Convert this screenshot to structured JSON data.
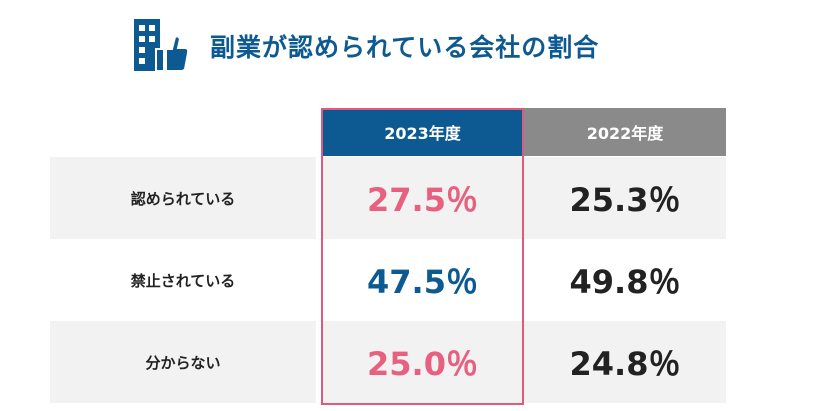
{
  "header": {
    "title": "副業が認められている会社の割合",
    "icon": "building-thumbs-up-icon"
  },
  "colors": {
    "title": "#0d5a92",
    "header_2023": "#0d5a92",
    "header_2022": "#8a8a8a",
    "highlight": "#e05a80",
    "pink_value": "#e8607f",
    "blue_value": "#0d5a92"
  },
  "chart_data": {
    "type": "table",
    "columns": [
      "2023年度",
      "2022年度"
    ],
    "rows": [
      {
        "label": "認められている",
        "values": [
          "27.5％",
          "25.3％"
        ],
        "accent": "pink"
      },
      {
        "label": "禁止されている",
        "values": [
          "47.5％",
          "49.8％"
        ],
        "accent": "blue"
      },
      {
        "label": "分からない",
        "values": [
          "25.0％",
          "24.8％"
        ],
        "accent": "pink"
      }
    ],
    "highlighted_column": "2023年度"
  }
}
